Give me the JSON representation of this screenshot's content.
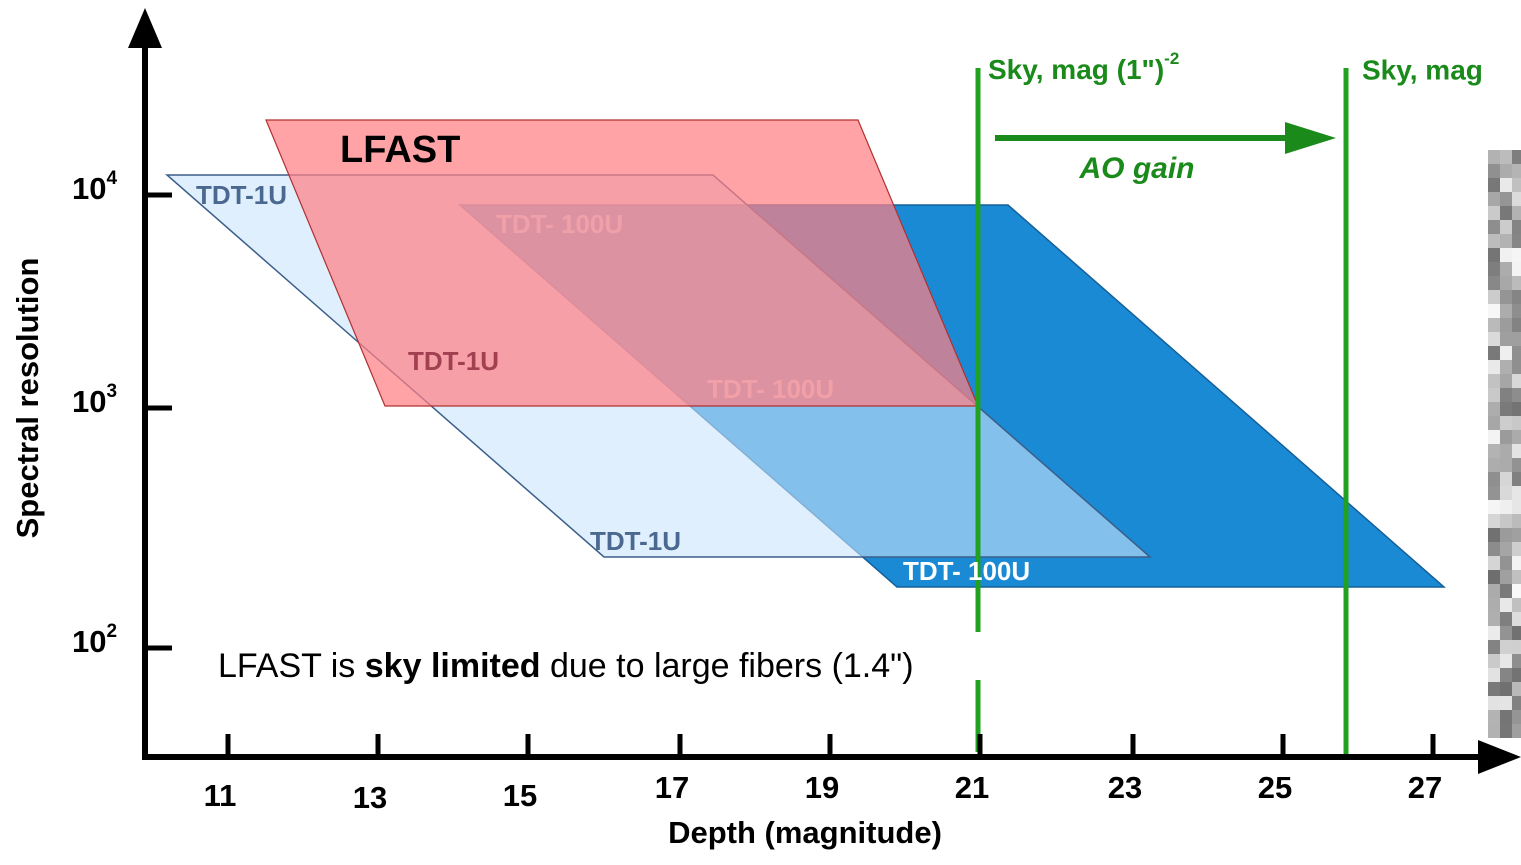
{
  "y_axis": {
    "title": "Spectral resolution",
    "ticks": [
      {
        "base": "10",
        "exponent": "4"
      },
      {
        "base": "10",
        "exponent": "3"
      },
      {
        "base": "10",
        "exponent": "2"
      }
    ]
  },
  "x_axis": {
    "title": "Depth (magnitude)",
    "ticks": [
      "11",
      "13",
      "15",
      "17",
      "19",
      "21",
      "23",
      "25",
      "27"
    ]
  },
  "regions": [
    {
      "label": "LFAST"
    },
    {
      "label": "TDT-1U"
    },
    {
      "label": "TDT- 100U"
    },
    {
      "label": "TDT-1U"
    },
    {
      "label": "TDT- 100U"
    },
    {
      "label": "TDT-1U"
    },
    {
      "label": "TDT- 100U"
    }
  ],
  "sky_lines": [
    {
      "label": "Sky, mag (1\")",
      "superscript": "-2"
    },
    {
      "label": "Sky, mag"
    }
  ],
  "ao_gain": "AO gain",
  "note": {
    "parts": [
      "LFAST is ",
      "sky limited",
      " due to large fibers (1.4\")"
    ]
  }
}
